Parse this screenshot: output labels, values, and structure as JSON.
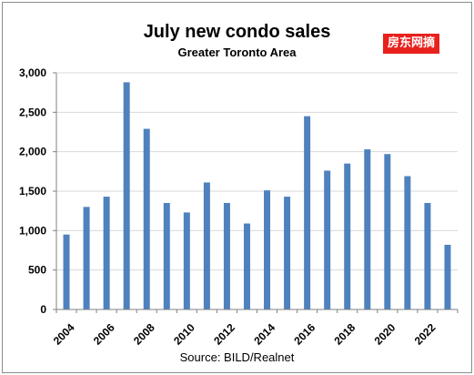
{
  "chart_data": {
    "type": "bar",
    "title": "July new condo sales",
    "subtitle": "Greater Toronto Area",
    "source": "Source:  BILD/Realnet",
    "xlabel": "",
    "ylabel": "",
    "ylim": [
      0,
      3000
    ],
    "yticks": [
      "0",
      "500",
      "1,000",
      "1,500",
      "2,000",
      "2,500",
      "3,000"
    ],
    "ytick_values": [
      0,
      500,
      1000,
      1500,
      2000,
      2500,
      3000
    ],
    "xtick_labels": [
      "2004",
      "2006",
      "2008",
      "2010",
      "2012",
      "2014",
      "2016",
      "2018",
      "2020",
      "2022"
    ],
    "categories": [
      "2004",
      "2005",
      "2006",
      "2007",
      "2008",
      "2009",
      "2010",
      "2011",
      "2012",
      "2013",
      "2014",
      "2015",
      "2016",
      "2017",
      "2018",
      "2019",
      "2020",
      "2021",
      "2022",
      "2023"
    ],
    "values": [
      950,
      1300,
      1430,
      2880,
      2290,
      1350,
      1230,
      1610,
      1350,
      1090,
      1510,
      1430,
      2450,
      1760,
      1850,
      2030,
      1970,
      1690,
      1350,
      820
    ],
    "bar_color": "#4f81bd",
    "grid": true,
    "grid_color": "#d9d9d9",
    "legend": "none"
  },
  "watermark": "房东网摘"
}
